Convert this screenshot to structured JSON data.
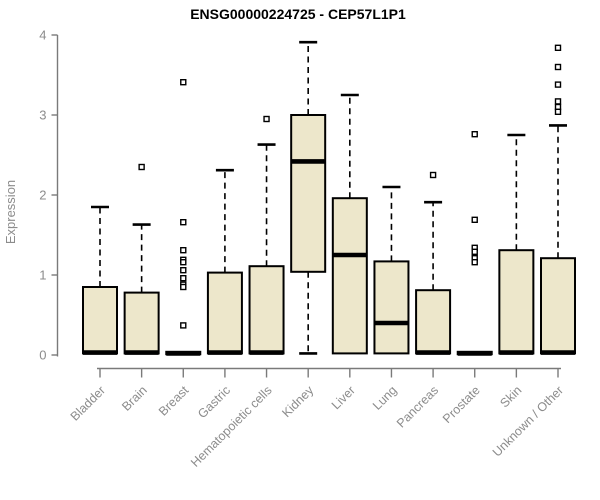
{
  "chart_data": {
    "type": "boxplot",
    "title": "ENSG00000224725 - CEP57L1P1",
    "xlabel": "",
    "ylabel": "Expression",
    "ylim": [
      0,
      4
    ],
    "yticks": [
      0,
      1,
      2,
      3,
      4
    ],
    "grid": false,
    "legend": "none",
    "categories": [
      "Bladder",
      "Brain",
      "Breast",
      "Gastric",
      "Hematopoietic cells",
      "Kidney",
      "Liver",
      "Lung",
      "Pancreas",
      "Prostate",
      "Skin",
      "Unknown / Other"
    ],
    "boxes": [
      {
        "category": "Bladder",
        "low": 0.02,
        "q1": 0.02,
        "median": 0.03,
        "q3": 0.85,
        "high": 1.85,
        "outliers": []
      },
      {
        "category": "Brain",
        "low": 0.02,
        "q1": 0.02,
        "median": 0.03,
        "q3": 0.78,
        "high": 1.63,
        "outliers": [
          2.35
        ]
      },
      {
        "category": "Breast",
        "low": 0.01,
        "q1": 0.01,
        "median": 0.02,
        "q3": 0.04,
        "high": 0.04,
        "outliers": [
          3.41,
          1.66,
          1.31,
          1.19,
          1.16,
          1.06,
          0.96,
          0.88,
          0.85,
          0.37
        ]
      },
      {
        "category": "Gastric",
        "low": 0.02,
        "q1": 0.02,
        "median": 0.03,
        "q3": 1.03,
        "high": 2.31,
        "outliers": []
      },
      {
        "category": "Hematopoietic cells",
        "low": 0.02,
        "q1": 0.02,
        "median": 0.03,
        "q3": 1.11,
        "high": 2.63,
        "outliers": [
          2.95
        ]
      },
      {
        "category": "Kidney",
        "low": 0.02,
        "q1": 1.04,
        "median": 2.42,
        "q3": 3.0,
        "high": 3.91,
        "outliers": []
      },
      {
        "category": "Liver",
        "low": 0.02,
        "q1": 0.02,
        "median": 1.25,
        "q3": 1.96,
        "high": 3.25,
        "outliers": []
      },
      {
        "category": "Lung",
        "low": 0.02,
        "q1": 0.02,
        "median": 0.4,
        "q3": 1.17,
        "high": 2.1,
        "outliers": []
      },
      {
        "category": "Pancreas",
        "low": 0.02,
        "q1": 0.02,
        "median": 0.03,
        "q3": 0.81,
        "high": 1.91,
        "outliers": [
          2.25
        ]
      },
      {
        "category": "Prostate",
        "low": 0.01,
        "q1": 0.01,
        "median": 0.02,
        "q3": 0.04,
        "high": 0.04,
        "outliers": [
          2.76,
          1.69,
          1.34,
          1.29,
          1.21,
          1.16
        ]
      },
      {
        "category": "Skin",
        "low": 0.02,
        "q1": 0.02,
        "median": 0.03,
        "q3": 1.31,
        "high": 2.75,
        "outliers": []
      },
      {
        "category": "Unknown / Other",
        "low": 0.02,
        "q1": 0.02,
        "median": 0.03,
        "q3": 1.21,
        "high": 2.87,
        "outliers": [
          3.84,
          3.6,
          3.38,
          3.17,
          3.1,
          3.04
        ]
      }
    ],
    "colors": {
      "box_fill": "#EDE7CB",
      "box_stroke": "#000000",
      "median": "#000000",
      "whisker": "#000000",
      "outlier_fill": "#FFFFFF",
      "outlier_stroke": "#000000",
      "axis_line": "#7A7A7A",
      "axis_text": "#8C8C8C",
      "title": "#000000",
      "background": "#FFFFFF"
    }
  }
}
